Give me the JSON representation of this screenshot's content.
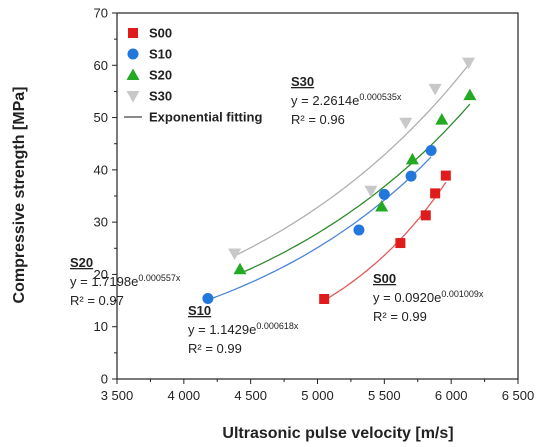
{
  "chart_data": {
    "type": "scatter",
    "xlabel": "Ultrasonic pulse velocity [m/s]",
    "ylabel": "Compressive strength [MPa]",
    "xlim": [
      3500,
      6500
    ],
    "ylim": [
      0,
      70
    ],
    "x_ticks": [
      3500,
      4000,
      4500,
      5000,
      5500,
      6000,
      6500
    ],
    "x_tick_labels": [
      "3 500",
      "4 000",
      "4 500",
      "5 000",
      "5 500",
      "6 000",
      "6 500"
    ],
    "y_ticks": [
      0,
      10,
      20,
      30,
      40,
      50,
      60,
      70
    ],
    "y_tick_labels": [
      "0",
      "10",
      "20",
      "30",
      "40",
      "50",
      "60",
      "70"
    ],
    "legend_position": "top-left",
    "fit_label": "Exponential fitting",
    "series": [
      {
        "name": "S00",
        "marker": "square",
        "color": "#e01b1b",
        "fit_color": "#e05a5a",
        "points": [
          [
            5050,
            15.3
          ],
          [
            5620,
            26.0
          ],
          [
            5810,
            31.3
          ],
          [
            5880,
            35.5
          ],
          [
            5960,
            38.9
          ]
        ],
        "fit": {
          "a": 0.092,
          "b": 0.001009,
          "x_range": [
            5050,
            5960
          ]
        },
        "annotation": {
          "name": "S00",
          "eq_prefix": "y = 0.0920e",
          "exponent": "0.001009x",
          "r2": "R² = 0.99"
        }
      },
      {
        "name": "S10",
        "marker": "circle",
        "color": "#2277dd",
        "fit_color": "#4a86d8",
        "points": [
          [
            4180,
            15.4
          ],
          [
            5310,
            28.5
          ],
          [
            5500,
            35.3
          ],
          [
            5700,
            38.8
          ],
          [
            5850,
            43.7
          ]
        ],
        "fit": {
          "a": 1.1429,
          "b": 0.000618,
          "x_range": [
            4180,
            5850
          ]
        },
        "annotation": {
          "name": "S10",
          "eq_prefix": "y = 1.1429e",
          "exponent": "0.000618x",
          "r2": "R² = 0.99"
        }
      },
      {
        "name": "S20",
        "marker": "triangle-up",
        "color": "#22aa22",
        "fit_color": "#2e8b2e",
        "points": [
          [
            4420,
            21.0
          ],
          [
            5480,
            33.0
          ],
          [
            5710,
            42.0
          ],
          [
            5930,
            49.6
          ],
          [
            6140,
            54.3
          ]
        ],
        "fit": {
          "a": 1.7198,
          "b": 0.000557,
          "x_range": [
            4420,
            6140
          ]
        },
        "annotation": {
          "name": "S20",
          "eq_prefix": "y = 1.7198e",
          "exponent": "0.000557x",
          "r2": "R² = 0.97"
        }
      },
      {
        "name": "S30",
        "marker": "triangle-down",
        "color": "#c8c8c8",
        "fit_color": "#b0b0b0",
        "points": [
          [
            4380,
            24.0
          ],
          [
            5400,
            36.0
          ],
          [
            5660,
            49.0
          ],
          [
            5880,
            55.5
          ],
          [
            6130,
            60.5
          ]
        ],
        "fit": {
          "a": 2.2614,
          "b": 0.000535,
          "x_range": [
            4380,
            6130
          ]
        },
        "annotation": {
          "name": "S30",
          "eq_prefix": "y = 2.2614e",
          "exponent": "0.000535x",
          "r2": "R² = 0.96"
        }
      }
    ]
  }
}
